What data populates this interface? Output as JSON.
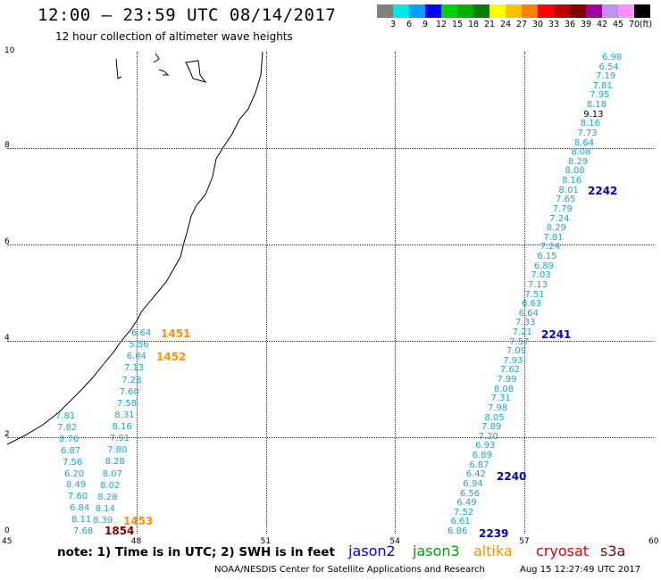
{
  "title": "12:00 – 23:59 UTC 08/14/2017",
  "subtitle": "12 hour collection of altimeter wave heights",
  "legend": {
    "unit": "(ft)",
    "items": [
      {
        "label": "3",
        "color": "#808080"
      },
      {
        "label": "6",
        "color": "#00e5e5"
      },
      {
        "label": "9",
        "color": "#00a0ff"
      },
      {
        "label": "12",
        "color": "#0000ff"
      },
      {
        "label": "15",
        "color": "#00d000"
      },
      {
        "label": "18",
        "color": "#00b000"
      },
      {
        "label": "21",
        "color": "#008000"
      },
      {
        "label": "24",
        "color": "#ffff00"
      },
      {
        "label": "27",
        "color": "#ffc000"
      },
      {
        "label": "30",
        "color": "#ff8000"
      },
      {
        "label": "33",
        "color": "#ff0000"
      },
      {
        "label": "36",
        "color": "#c00000"
      },
      {
        "label": "39",
        "color": "#800000"
      },
      {
        "label": "42",
        "color": "#a000a0"
      },
      {
        "label": "45",
        "color": "#c090f0"
      },
      {
        "label": "70",
        "color": "#ff90ff"
      },
      {
        "label": "",
        "color": "#000000"
      }
    ]
  },
  "axes": {
    "y_ticks": [
      "10",
      "8",
      "6",
      "4",
      "2",
      "0"
    ],
    "x_ticks": [
      "45",
      "48",
      "51",
      "54",
      "57",
      "60"
    ]
  },
  "passes": [
    {
      "id": "1451",
      "color": "#ff9000"
    },
    {
      "id": "1452",
      "color": "#ff9000"
    },
    {
      "id": "1453",
      "color": "#ff9000"
    },
    {
      "id": "1854",
      "color": "#800000"
    },
    {
      "id": "2239",
      "color": "#0000cc"
    },
    {
      "id": "2240",
      "color": "#0000cc"
    },
    {
      "id": "2241",
      "color": "#0000cc"
    },
    {
      "id": "2242",
      "color": "#0000cc"
    }
  ],
  "track_west": [
    "6.64",
    "5.56",
    "6.84",
    "7.13",
    "7.28",
    "7.60",
    "7.58",
    "8.31",
    "8.16",
    "7.91",
    "7.80",
    "8.28",
    "8.07",
    "8.02",
    "8.28",
    "8.14",
    "8.39"
  ],
  "track_west_outer": [
    "7.81",
    "7.82",
    "8.76",
    "6.87",
    "7.56",
    "6.20",
    "8.49",
    "7.60",
    "6.84",
    "8.11",
    "7.68"
  ],
  "track_east": [
    "6.98",
    "6.54",
    "7.19",
    "7.81",
    "7.95",
    "8.18",
    "9.13",
    "8.16",
    "7.73",
    "8.64",
    "8.08",
    "8.29",
    "8.08",
    "8.16",
    "8.01",
    "7.65",
    "7.79",
    "7.24",
    "8.29",
    "7.81",
    "7.24",
    "6.15",
    "6.89",
    "7.03",
    "7.13",
    "7.51",
    "6.63",
    "6.64",
    "7.33",
    "7.21",
    "7.57",
    "7.09",
    "7.93",
    "7.62",
    "7.99",
    "8.08",
    "7.31",
    "7.98",
    "8.05",
    "7.89",
    "7.20",
    "6.93",
    "6.89",
    "6.87",
    "6.42",
    "6.94",
    "6.56",
    "6.49",
    "7.52",
    "6.61",
    "6.86"
  ],
  "note": "note:  1) Time is in UTC;  2) SWH is in feet",
  "satellites": [
    {
      "name": "jason2",
      "color": "#0000ff"
    },
    {
      "name": "jason3",
      "color": "#00a000"
    },
    {
      "name": "altika",
      "color": "#ff9000"
    },
    {
      "name": "cryosat",
      "color": "#e00000"
    },
    {
      "name": "s3a",
      "color": "#800000"
    }
  ],
  "credit": "NOAA/NESDIS Center for Satellite Applications and Research",
  "timestamp": "Aug 15 12:27:49 UTC 2017"
}
